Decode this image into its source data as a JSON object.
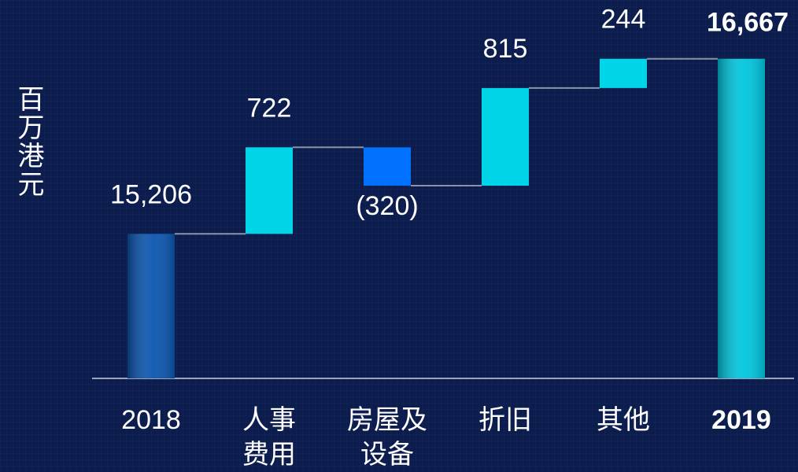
{
  "chart_data": {
    "type": "waterfall",
    "y_label": "百万港元",
    "categories": [
      "2018",
      "人事\n费用",
      "房屋及\n设备",
      "折旧",
      "其他",
      "2019"
    ],
    "values": [
      15206,
      722,
      -320,
      815,
      244,
      16667
    ],
    "value_labels": [
      "15,206",
      "722",
      "(320)",
      "815",
      "244",
      "16,667"
    ],
    "totals": [
      true,
      false,
      false,
      false,
      false,
      true
    ],
    "highlight": [
      false,
      false,
      false,
      false,
      false,
      true
    ],
    "colors": [
      "#0b56b0",
      "#00d6e8",
      "#0072ff",
      "#00d6e8",
      "#00d6e8",
      "#00c6de"
    ],
    "connector_color": "#8a93a8",
    "ylim": [
      14000,
      17000
    ]
  }
}
